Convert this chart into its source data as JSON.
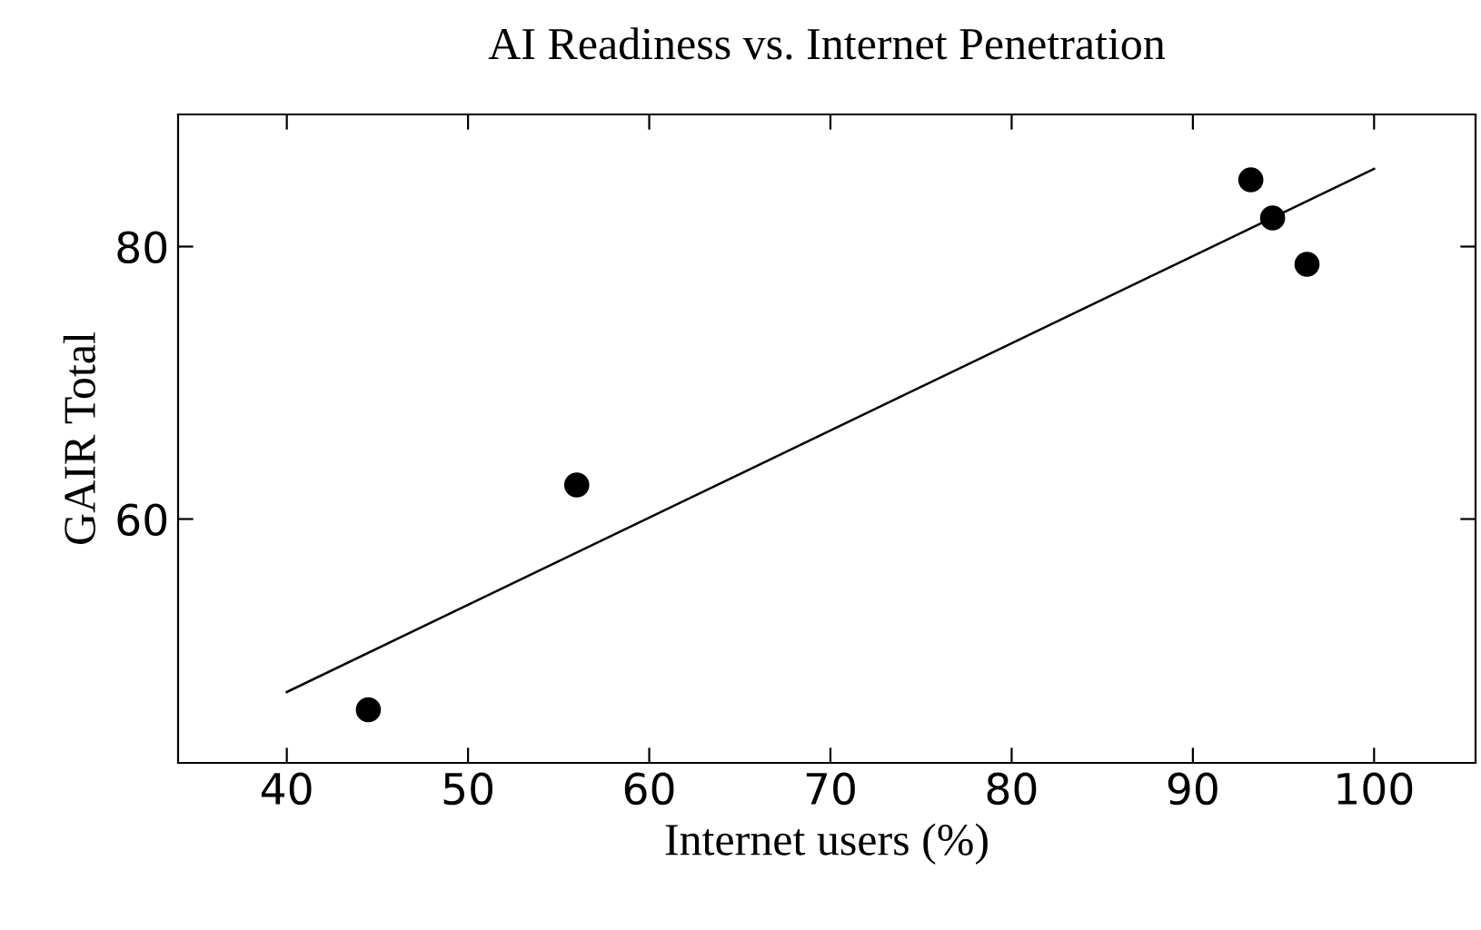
{
  "chart_data": {
    "type": "scatter",
    "title": "AI Readiness vs. Internet Penetration",
    "xlabel": "Internet users (%)",
    "ylabel": "GAIR Total",
    "series": [
      {
        "color": "#000000",
        "marker": "circle",
        "x": [
          44.5,
          56.0,
          93.2,
          94.4,
          96.3
        ],
        "values": [
          46.0,
          62.5,
          84.9,
          82.1,
          78.7
        ]
      },
      {
        "type": "line",
        "color": "#000000",
        "marker": "none",
        "x": [
          40,
          100
        ],
        "values": [
          47.3,
          85.7
        ]
      }
    ],
    "xlim": [
      34,
      105.6
    ],
    "ylim": [
      42.1,
      89.7
    ],
    "xticks": [
      40,
      50,
      60,
      70,
      80,
      90,
      100
    ],
    "yticks": [
      60,
      80
    ],
    "grid": false,
    "legend": false
  }
}
